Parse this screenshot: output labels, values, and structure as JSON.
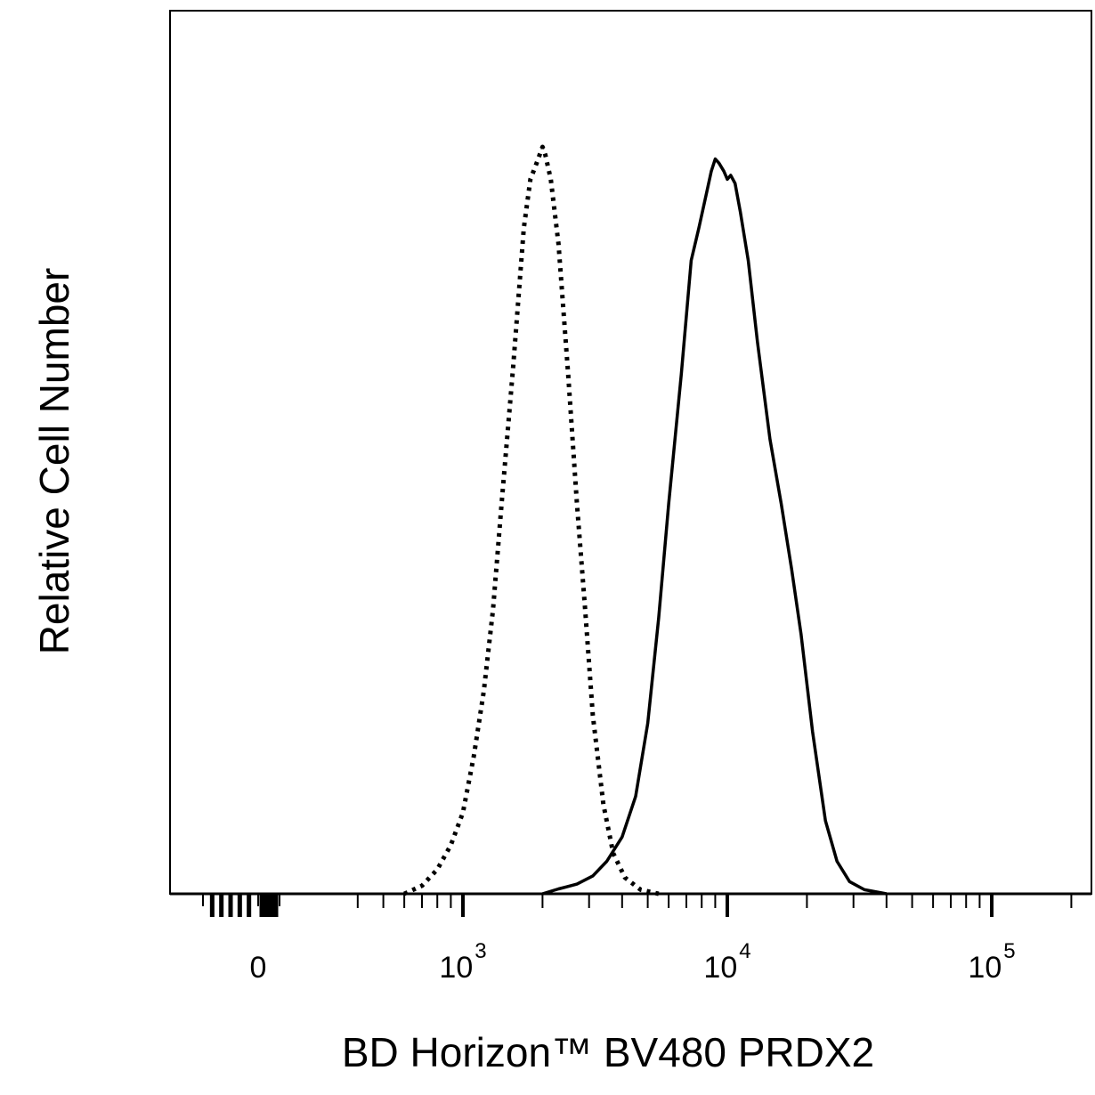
{
  "chart_data": {
    "type": "line",
    "title": "",
    "xlabel": "BD Horizon™ BV480 PRDX2",
    "ylabel": "Relative Cell Number",
    "x_scale": "biexponential",
    "xlim": [
      -300,
      200000
    ],
    "ylim": [
      0,
      100
    ],
    "grid": false,
    "legend": "none",
    "x_ticks": [
      {
        "value": 0,
        "base": "0",
        "exp": ""
      },
      {
        "value": 1000,
        "base": "10",
        "exp": "3"
      },
      {
        "value": 10000,
        "base": "10",
        "exp": "4"
      },
      {
        "value": 100000,
        "base": "10",
        "exp": "5"
      }
    ],
    "series": [
      {
        "style": "dotted",
        "color": "#000000",
        "points": [
          [
            600,
            0
          ],
          [
            700,
            1
          ],
          [
            800,
            3
          ],
          [
            900,
            6
          ],
          [
            1000,
            10
          ],
          [
            1100,
            17
          ],
          [
            1200,
            25
          ],
          [
            1300,
            35
          ],
          [
            1400,
            48
          ],
          [
            1550,
            65
          ],
          [
            1700,
            82
          ],
          [
            1800,
            88
          ],
          [
            1900,
            90
          ],
          [
            1950,
            91
          ],
          [
            2000,
            92
          ],
          [
            2050,
            91
          ],
          [
            2150,
            88
          ],
          [
            2300,
            80
          ],
          [
            2500,
            64
          ],
          [
            2700,
            48
          ],
          [
            2900,
            35
          ],
          [
            3100,
            22
          ],
          [
            3400,
            11
          ],
          [
            3700,
            5
          ],
          [
            4100,
            2
          ],
          [
            4700,
            0.5
          ],
          [
            5500,
            0
          ]
        ]
      },
      {
        "style": "solid",
        "color": "#000000",
        "points": [
          [
            2000,
            0
          ],
          [
            2300,
            0.6
          ],
          [
            2700,
            1.2
          ],
          [
            3100,
            2.2
          ],
          [
            3500,
            4
          ],
          [
            4000,
            7
          ],
          [
            4500,
            12
          ],
          [
            5000,
            21
          ],
          [
            5500,
            34
          ],
          [
            6000,
            48
          ],
          [
            6700,
            64
          ],
          [
            7300,
            78
          ],
          [
            7800,
            82
          ],
          [
            8300,
            86
          ],
          [
            8700,
            89
          ],
          [
            9000,
            90.5
          ],
          [
            9300,
            90
          ],
          [
            9700,
            89
          ],
          [
            10000,
            88
          ],
          [
            10300,
            88.5
          ],
          [
            10700,
            87.5
          ],
          [
            11200,
            84
          ],
          [
            12000,
            78
          ],
          [
            13000,
            68
          ],
          [
            14500,
            56
          ],
          [
            16000,
            48
          ],
          [
            17500,
            40
          ],
          [
            19000,
            32
          ],
          [
            21000,
            20
          ],
          [
            23500,
            9
          ],
          [
            26000,
            4
          ],
          [
            29000,
            1.5
          ],
          [
            33000,
            0.5
          ],
          [
            40000,
            0
          ]
        ]
      }
    ]
  }
}
